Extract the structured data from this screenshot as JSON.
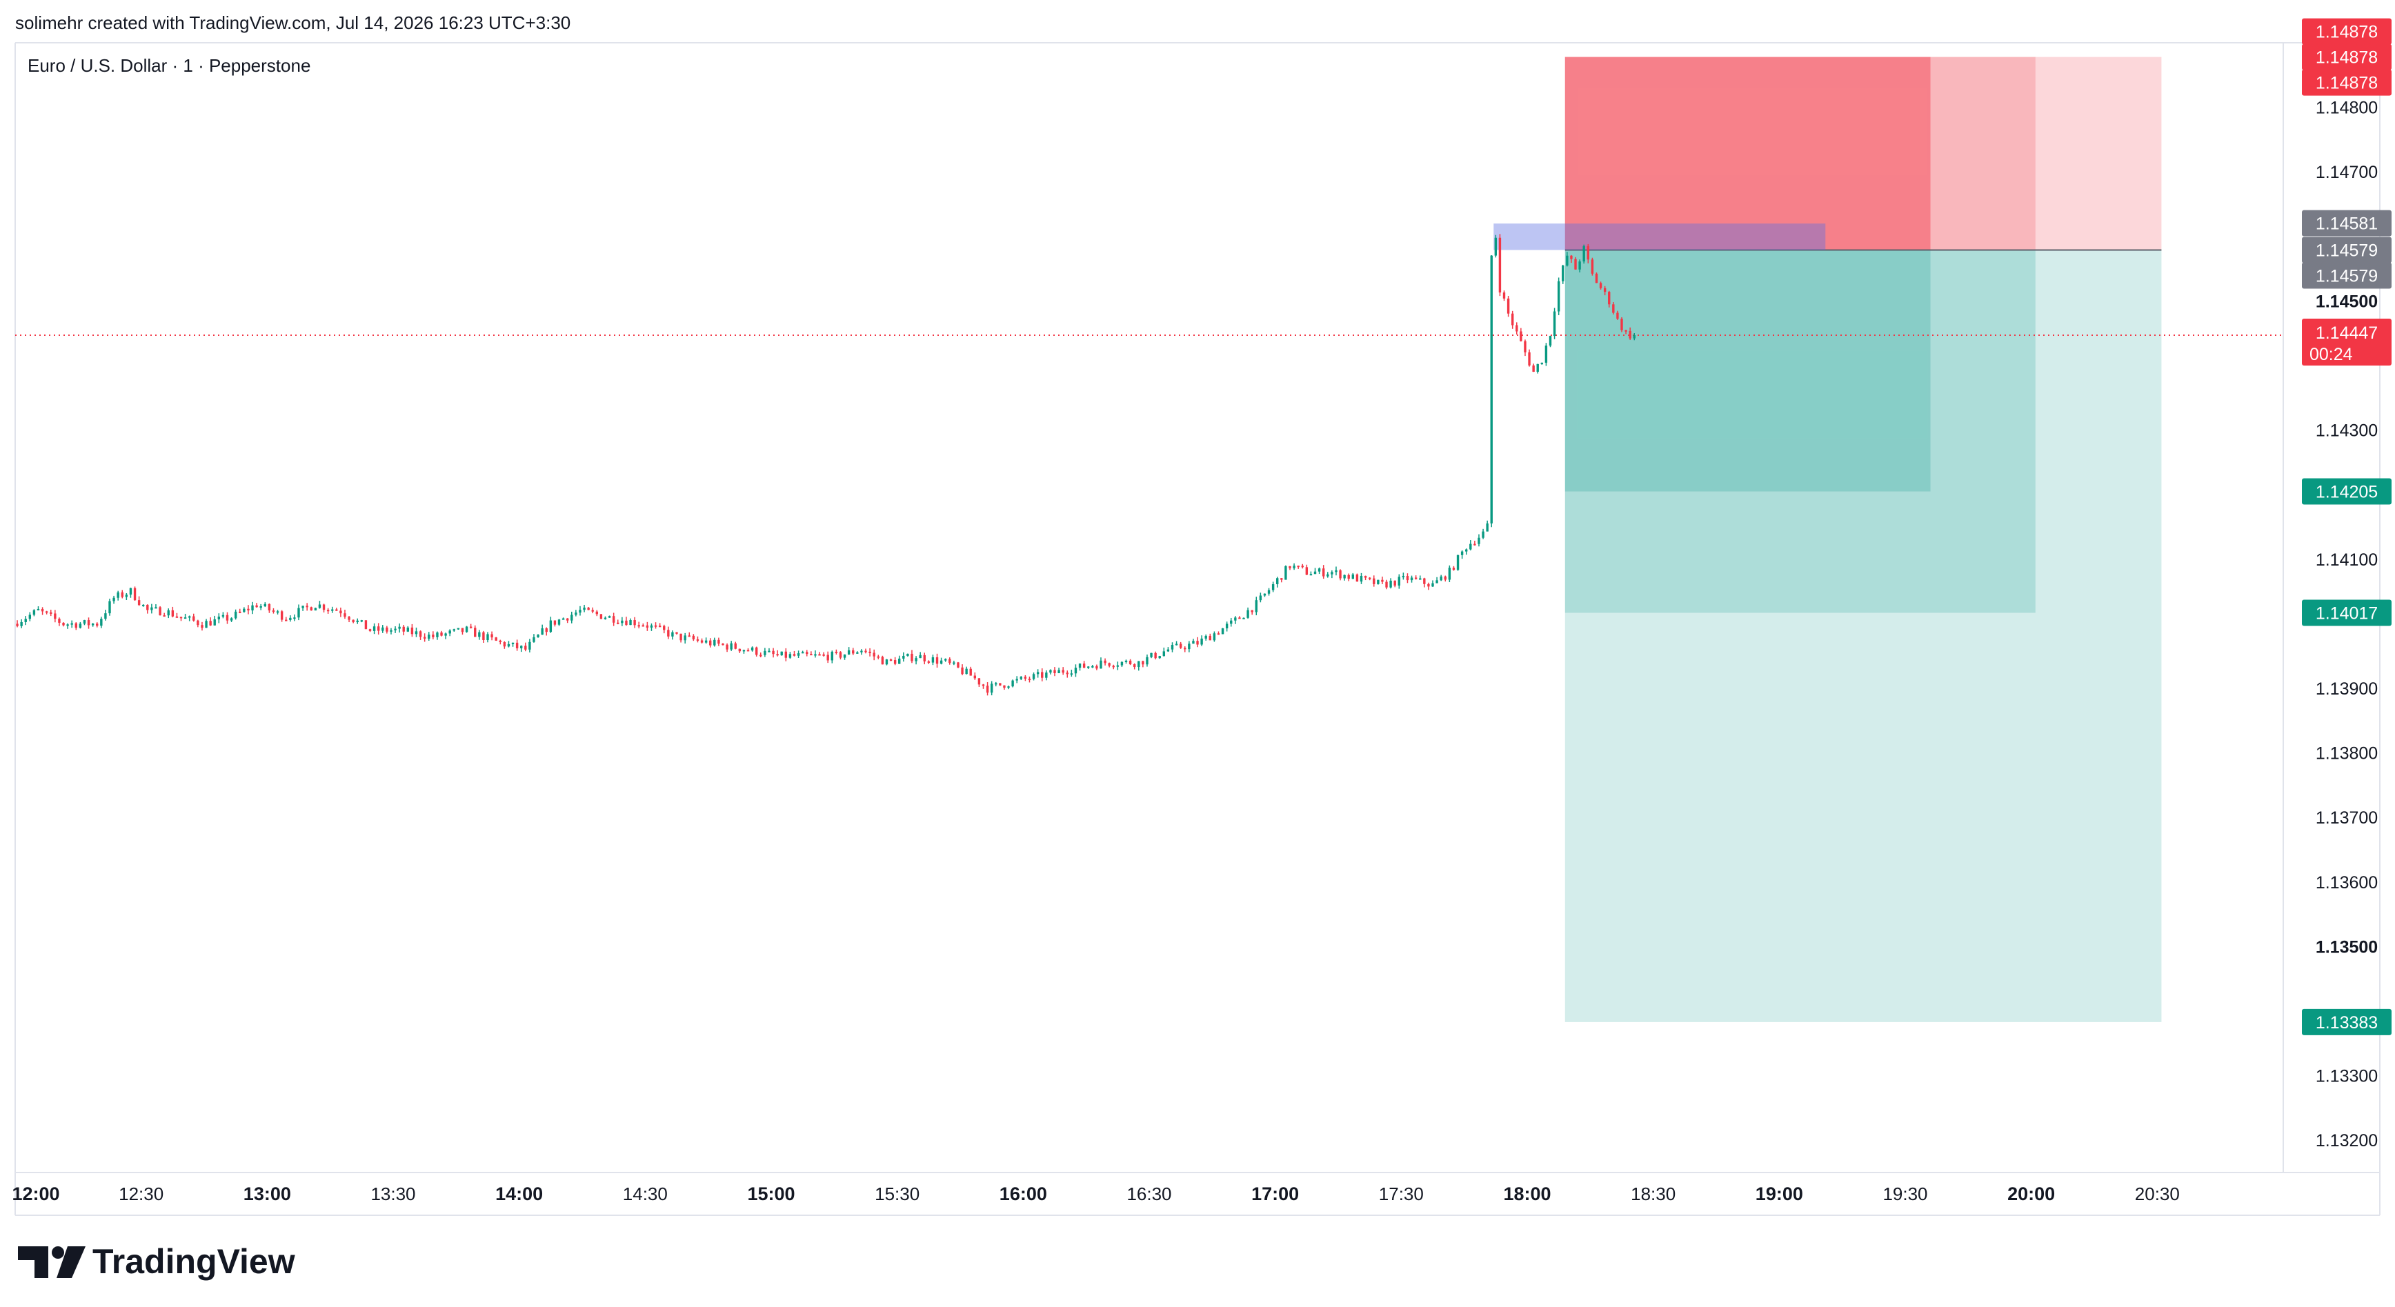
{
  "header": {
    "credit": "solimehr created with TradingView.com, Jul 14, 2026 16:23 UTC+3:30",
    "symbol": "Euro / U.S. Dollar · 1 · Pepperstone"
  },
  "footer": {
    "logo_text": "TradingView"
  },
  "colors": {
    "up": "#089981",
    "down": "#f23645",
    "grey_badge": "#787b86",
    "target_zone": "#26a69a",
    "stop_zone": "#f23645",
    "entry_band": "#5b6ee1"
  },
  "chart_data": {
    "type": "candlestick",
    "symbol": "Euro / U.S. Dollar",
    "interval": "1",
    "source": "Pepperstone",
    "x_ticks": [
      {
        "label": "12:00",
        "bold": true
      },
      {
        "label": "12:30",
        "bold": false
      },
      {
        "label": "13:00",
        "bold": true
      },
      {
        "label": "13:30",
        "bold": false
      },
      {
        "label": "14:00",
        "bold": true
      },
      {
        "label": "14:30",
        "bold": false
      },
      {
        "label": "15:00",
        "bold": true
      },
      {
        "label": "15:30",
        "bold": false
      },
      {
        "label": "16:00",
        "bold": true
      },
      {
        "label": "16:30",
        "bold": false
      },
      {
        "label": "17:00",
        "bold": true
      },
      {
        "label": "17:30",
        "bold": false
      },
      {
        "label": "18:00",
        "bold": true
      },
      {
        "label": "18:30",
        "bold": false
      },
      {
        "label": "19:00",
        "bold": true
      },
      {
        "label": "19:30",
        "bold": false
      },
      {
        "label": "20:00",
        "bold": true
      },
      {
        "label": "20:30",
        "bold": false
      }
    ],
    "x_range_minutes": [
      720,
      1260
    ],
    "y_range": [
      1.1315,
      1.149
    ],
    "y_ticks": [
      {
        "value": 1.148,
        "label": "1.14800",
        "bold": false
      },
      {
        "value": 1.147,
        "label": "1.14700",
        "bold": false
      },
      {
        "value": 1.145,
        "label": "1.14500",
        "bold": true
      },
      {
        "value": 1.143,
        "label": "1.14300",
        "bold": false
      },
      {
        "value": 1.141,
        "label": "1.14100",
        "bold": false
      },
      {
        "value": 1.139,
        "label": "1.13900",
        "bold": false
      },
      {
        "value": 1.138,
        "label": "1.13800",
        "bold": false
      },
      {
        "value": 1.137,
        "label": "1.13700",
        "bold": false
      },
      {
        "value": 1.136,
        "label": "1.13600",
        "bold": false
      },
      {
        "value": 1.135,
        "label": "1.13500",
        "bold": true
      },
      {
        "value": 1.133,
        "label": "1.13300",
        "bold": false
      },
      {
        "value": 1.132,
        "label": "1.13200",
        "bold": false
      }
    ],
    "price_path": [
      [
        720,
        1.14
      ],
      [
        726,
        1.1402
      ],
      [
        732,
        1.14
      ],
      [
        740,
        1.14
      ],
      [
        744,
        1.1404
      ],
      [
        748,
        1.1405
      ],
      [
        752,
        1.1402
      ],
      [
        756,
        1.1402
      ],
      [
        760,
        1.1401
      ],
      [
        765,
        1.14
      ],
      [
        772,
        1.1401
      ],
      [
        778,
        1.1403
      ],
      [
        785,
        1.1401
      ],
      [
        792,
        1.1403
      ],
      [
        798,
        1.1402
      ],
      [
        805,
        1.1399
      ],
      [
        812,
        1.1399
      ],
      [
        820,
        1.1398
      ],
      [
        828,
        1.1399
      ],
      [
        836,
        1.1397
      ],
      [
        842,
        1.1396
      ],
      [
        848,
        1.14
      ],
      [
        855,
        1.1402
      ],
      [
        862,
        1.1401
      ],
      [
        870,
        1.14
      ],
      [
        878,
        1.1398
      ],
      [
        886,
        1.1397
      ],
      [
        895,
        1.1396
      ],
      [
        902,
        1.1395
      ],
      [
        910,
        1.1395
      ],
      [
        916,
        1.1395
      ],
      [
        922,
        1.1396
      ],
      [
        928,
        1.1394
      ],
      [
        935,
        1.1395
      ],
      [
        942,
        1.1394
      ],
      [
        948,
        1.1392
      ],
      [
        952,
        1.139
      ],
      [
        958,
        1.1391
      ],
      [
        965,
        1.1392
      ],
      [
        972,
        1.1393
      ],
      [
        980,
        1.1394
      ],
      [
        988,
        1.1394
      ],
      [
        995,
        1.1396
      ],
      [
        1002,
        1.1397
      ],
      [
        1010,
        1.14
      ],
      [
        1016,
        1.1403
      ],
      [
        1020,
        1.1406
      ],
      [
        1024,
        1.1409
      ],
      [
        1028,
        1.1408
      ],
      [
        1034,
        1.1408
      ],
      [
        1040,
        1.1407
      ],
      [
        1046,
        1.1406
      ],
      [
        1052,
        1.1407
      ],
      [
        1058,
        1.1406
      ],
      [
        1062,
        1.1408
      ],
      [
        1066,
        1.1412
      ],
      [
        1070,
        1.1414
      ],
      [
        1071,
        1.1415
      ],
      [
        1072,
        1.1457
      ],
      [
        1073,
        1.146
      ],
      [
        1074,
        1.1452
      ],
      [
        1076,
        1.1448
      ],
      [
        1078,
        1.1445
      ],
      [
        1080,
        1.1442
      ],
      [
        1082,
        1.1439
      ],
      [
        1084,
        1.1441
      ],
      [
        1086,
        1.1445
      ],
      [
        1088,
        1.1453
      ],
      [
        1090,
        1.1457
      ],
      [
        1092,
        1.1455
      ],
      [
        1094,
        1.1458
      ],
      [
        1096,
        1.1454
      ],
      [
        1098,
        1.1452
      ],
      [
        1100,
        1.145
      ],
      [
        1102,
        1.1447
      ],
      [
        1104,
        1.1445
      ],
      [
        1105,
        1.14447
      ]
    ],
    "last_price": 1.14447,
    "last_price_label": "1.14447",
    "countdown": "00:24",
    "position": {
      "entry_start": 1072,
      "entry_end": 1151,
      "entry_low": 1.14579,
      "entry_high": 1.1462,
      "stop": 1.14878,
      "entry": 1.14579,
      "zones": [
        {
          "start": 1089,
          "end": 1176,
          "target": 1.14205
        },
        {
          "start": 1089,
          "end": 1201,
          "target": 1.14017
        },
        {
          "start": 1089,
          "end": 1231,
          "target": 1.13383
        }
      ]
    },
    "price_badges": [
      {
        "value": 1.14878,
        "label": "1.14878",
        "color": "#f23645",
        "anchor": "bottom"
      },
      {
        "value": 1.14878,
        "label": "1.14878",
        "color": "#f23645",
        "anchor": "center"
      },
      {
        "value": 1.14878,
        "label": "1.14878",
        "color": "#f23645",
        "anchor": "top"
      },
      {
        "value": 1.14581,
        "label": "1.14581",
        "color": "#787b86",
        "anchor": "bottom"
      },
      {
        "value": 1.14579,
        "label": "1.14579",
        "color": "#787b86",
        "anchor": "center"
      },
      {
        "value": 1.14579,
        "label": "1.14579",
        "color": "#787b86",
        "anchor": "top"
      },
      {
        "value": 1.14205,
        "label": "1.14205",
        "color": "#089981",
        "anchor": "center"
      },
      {
        "value": 1.14017,
        "label": "1.14017",
        "color": "#089981",
        "anchor": "center"
      },
      {
        "value": 1.13383,
        "label": "1.13383",
        "color": "#089981",
        "anchor": "center"
      }
    ]
  }
}
